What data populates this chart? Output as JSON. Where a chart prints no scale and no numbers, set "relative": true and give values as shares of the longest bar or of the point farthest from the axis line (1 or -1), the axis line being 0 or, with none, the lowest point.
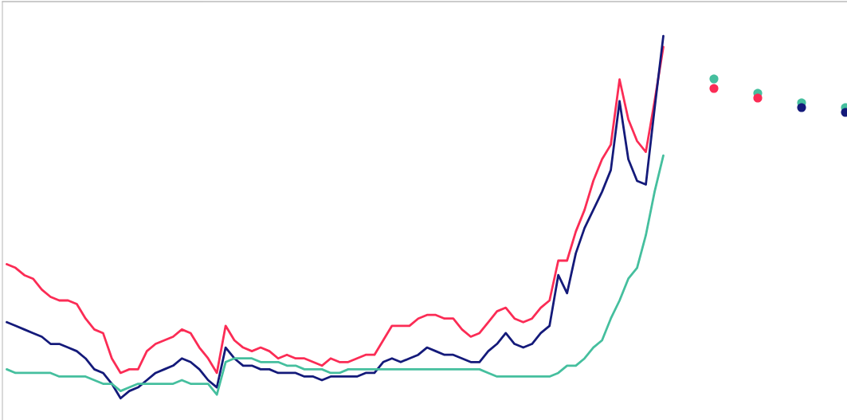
{
  "chart_data": {
    "type": "line",
    "relative": true,
    "legend": false,
    "grid": false,
    "marker": "none",
    "line_style": "solid",
    "categories": [
      null,
      null,
      null,
      null,
      null,
      null,
      null,
      null,
      null,
      null,
      null,
      null,
      null,
      null,
      null,
      null,
      null,
      null,
      null,
      null,
      null,
      null,
      null,
      null,
      null,
      null,
      null,
      null,
      null,
      null,
      null,
      null,
      null,
      null,
      null,
      null,
      null,
      null,
      null,
      null,
      null,
      null,
      null,
      null,
      null,
      null,
      null,
      null,
      null,
      null,
      null,
      null,
      null,
      null,
      null,
      null,
      null,
      null,
      null,
      null,
      null,
      null,
      null,
      null,
      null,
      null,
      null,
      null,
      null,
      null,
      null,
      null,
      null,
      null,
      null,
      null
    ],
    "series": [
      {
        "color": "#fb2c55",
        "values": [
          0.37,
          0.36,
          0.34,
          0.33,
          0.3,
          0.28,
          0.27,
          0.27,
          0.26,
          0.22,
          0.19,
          0.18,
          0.11,
          0.07,
          0.08,
          0.08,
          0.13,
          0.15,
          0.16,
          0.17,
          0.19,
          0.18,
          0.14,
          0.11,
          0.07,
          0.2,
          0.16,
          0.14,
          0.13,
          0.14,
          0.13,
          0.11,
          0.12,
          0.11,
          0.11,
          0.1,
          0.09,
          0.11,
          0.1,
          0.1,
          0.11,
          0.12,
          0.12,
          0.16,
          0.2,
          0.2,
          0.2,
          0.22,
          0.23,
          0.23,
          0.22,
          0.22,
          0.19,
          0.17,
          0.18,
          0.21,
          0.24,
          0.25,
          0.22,
          0.21,
          0.22,
          0.25,
          0.27,
          0.38,
          0.38,
          0.46,
          0.52,
          0.6,
          0.66,
          0.7,
          0.88,
          0.77,
          0.71,
          0.68,
          0.82,
          0.97
        ]
      },
      {
        "color": "#141a7a",
        "values": [
          0.21,
          0.2,
          0.19,
          0.18,
          0.17,
          0.15,
          0.15,
          0.14,
          0.13,
          0.11,
          0.08,
          0.07,
          0.04,
          0,
          0.02,
          0.03,
          0.05,
          0.07,
          0.08,
          0.09,
          0.11,
          0.1,
          0.08,
          0.05,
          0.03,
          0.14,
          0.11,
          0.09,
          0.09,
          0.08,
          0.08,
          0.07,
          0.07,
          0.07,
          0.06,
          0.06,
          0.05,
          0.06,
          0.06,
          0.06,
          0.06,
          0.07,
          0.07,
          0.1,
          0.11,
          0.1,
          0.11,
          0.12,
          0.14,
          0.13,
          0.12,
          0.12,
          0.11,
          0.1,
          0.1,
          0.13,
          0.15,
          0.18,
          0.15,
          0.14,
          0.15,
          0.18,
          0.2,
          0.34,
          0.29,
          0.4,
          0.47,
          0.52,
          0.57,
          0.63,
          0.82,
          0.66,
          0.6,
          0.59,
          0.8,
          1
        ]
      },
      {
        "color": "#45bf9e",
        "values": [
          0.08,
          0.07,
          0.07,
          0.07,
          0.07,
          0.07,
          0.06,
          0.06,
          0.06,
          0.06,
          0.05,
          0.04,
          0.04,
          0.02,
          0.03,
          0.04,
          0.04,
          0.04,
          0.04,
          0.04,
          0.05,
          0.04,
          0.04,
          0.04,
          0.01,
          0.1,
          0.11,
          0.11,
          0.11,
          0.1,
          0.1,
          0.1,
          0.09,
          0.09,
          0.08,
          0.08,
          0.08,
          0.07,
          0.07,
          0.08,
          0.08,
          0.08,
          0.08,
          0.08,
          0.08,
          0.08,
          0.08,
          0.08,
          0.08,
          0.08,
          0.08,
          0.08,
          0.08,
          0.08,
          0.08,
          0.07,
          0.06,
          0.06,
          0.06,
          0.06,
          0.06,
          0.06,
          0.06,
          0.07,
          0.09,
          0.09,
          0.11,
          0.14,
          0.16,
          0.22,
          0.27,
          0.33,
          0.36,
          0.45,
          0.57,
          0.67
        ]
      }
    ]
  }
}
